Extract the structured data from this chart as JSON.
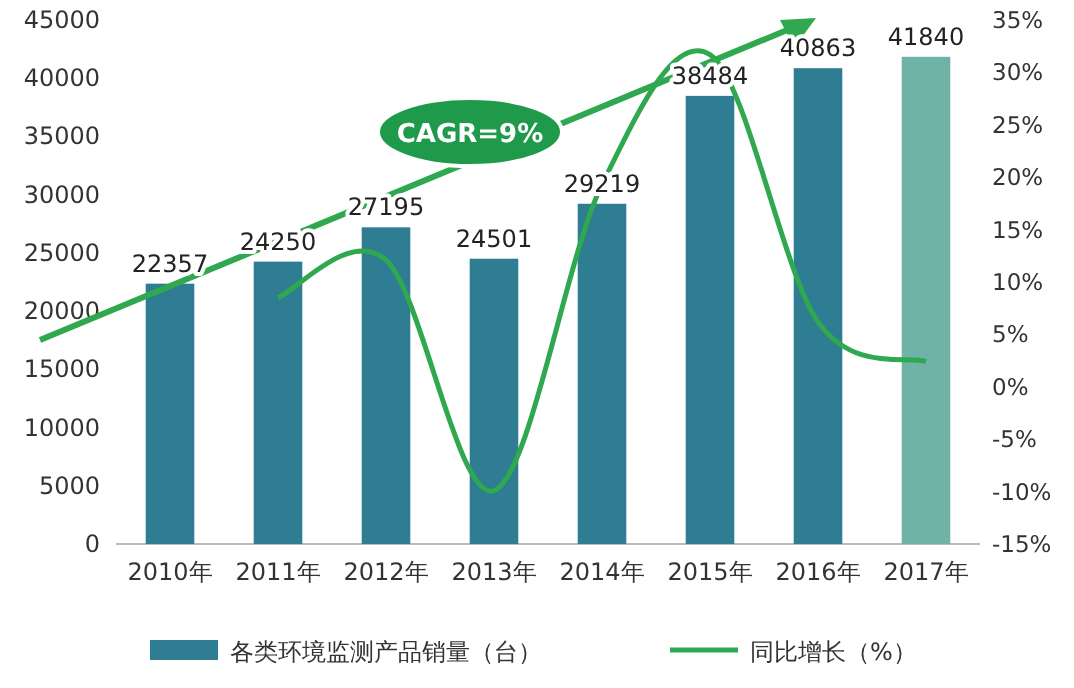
{
  "chart_data": {
    "type": "bar",
    "categories": [
      "2010年",
      "2011年",
      "2012年",
      "2013年",
      "2014年",
      "2015年",
      "2016年",
      "2017年"
    ],
    "series": [
      {
        "name": "各类环境监测产品销量（台）",
        "colors": [
          "#2e7d92",
          "#2e7d92",
          "#2e7d92",
          "#2e7d92",
          "#2e7d92",
          "#2e7d92",
          "#2e7d92",
          "#6fb3a8"
        ],
        "values": [
          22357,
          24250,
          27195,
          24501,
          29219,
          38484,
          40863,
          41840
        ],
        "value_labels": [
          "22357",
          "24250",
          "27195",
          "24501",
          "29219",
          "38484",
          "40863",
          "41840"
        ]
      },
      {
        "name": "同比增长（%）",
        "type": "line",
        "axis": "y2",
        "color": "#2fa84f",
        "values": [
          null,
          8.5,
          12.1,
          -9.9,
          19.3,
          31.7,
          6.2,
          2.4
        ]
      }
    ],
    "ylim": [
      0,
      45000
    ],
    "yticks": [
      0,
      5000,
      10000,
      15000,
      20000,
      25000,
      30000,
      35000,
      40000,
      45000
    ],
    "y2lim": [
      -15,
      35
    ],
    "y2ticks": [
      {
        "value": -15,
        "label": "-15%"
      },
      {
        "value": -10,
        "label": "-10%"
      },
      {
        "value": -5,
        "label": "-5%"
      },
      {
        "value": 0,
        "label": "0%"
      },
      {
        "value": 5,
        "label": "5%"
      },
      {
        "value": 10,
        "label": "10%"
      },
      {
        "value": 15,
        "label": "15%"
      },
      {
        "value": 20,
        "label": "20%"
      },
      {
        "value": 25,
        "label": "25%"
      },
      {
        "value": 30,
        "label": "30%"
      },
      {
        "value": 35,
        "label": "35%"
      }
    ],
    "annotations": [
      "CAGR=9%"
    ],
    "legend": "bottom",
    "marker": "none"
  }
}
